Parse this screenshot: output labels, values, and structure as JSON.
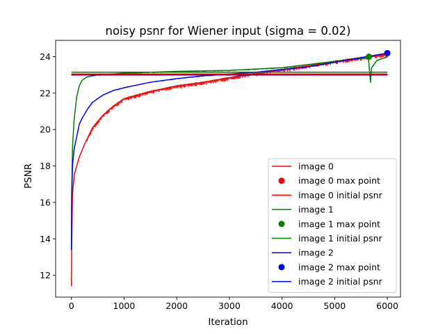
{
  "chart_data": {
    "type": "line",
    "title": "noisy psnr for Wiener input (sigma = 0.02)",
    "xlabel": "Iteration",
    "ylabel": "PSNR",
    "xlim": [
      -300,
      6250
    ],
    "ylim": [
      10.8,
      24.9
    ],
    "xticks": [
      0,
      1000,
      2000,
      3000,
      4000,
      5000,
      6000
    ],
    "yticks": [
      12,
      14,
      16,
      18,
      20,
      22,
      24
    ],
    "grid": false,
    "legend_position": "lower-right",
    "colors": {
      "image0": "#ff0000",
      "image1": "#008000",
      "image2": "#0000ff"
    },
    "series": [
      {
        "name": "image 0",
        "kind": "line",
        "color": "#ff0000",
        "points": [
          [
            0,
            11.4
          ],
          [
            5,
            13.5
          ],
          [
            20,
            16.5
          ],
          [
            60,
            17.6
          ],
          [
            100,
            18.0
          ],
          [
            150,
            18.5
          ],
          [
            250,
            19.2
          ],
          [
            400,
            20.1
          ],
          [
            600,
            20.8
          ],
          [
            800,
            21.3
          ],
          [
            1000,
            21.7
          ],
          [
            1500,
            22.1
          ],
          [
            2000,
            22.4
          ],
          [
            2500,
            22.6
          ],
          [
            3000,
            22.85
          ],
          [
            3500,
            23.1
          ],
          [
            4000,
            23.3
          ],
          [
            4500,
            23.5
          ],
          [
            5000,
            23.75
          ],
          [
            5500,
            23.95
          ],
          [
            6000,
            24.15
          ]
        ],
        "noise": 0.12
      },
      {
        "name": "image 0 max point",
        "kind": "marker",
        "color": "#ff0000",
        "x": 6000,
        "y": 24.2
      },
      {
        "name": "image 0 initial psnr",
        "kind": "hline",
        "color": "#ff0000",
        "y": 23.05
      },
      {
        "name": "image 1",
        "kind": "line",
        "color": "#008000",
        "points": [
          [
            0,
            13.6
          ],
          [
            5,
            16.5
          ],
          [
            20,
            19.0
          ],
          [
            50,
            20.5
          ],
          [
            100,
            21.8
          ],
          [
            150,
            22.4
          ],
          [
            200,
            22.7
          ],
          [
            300,
            22.9
          ],
          [
            500,
            23.0
          ],
          [
            1000,
            23.1
          ],
          [
            2000,
            23.2
          ],
          [
            3000,
            23.25
          ],
          [
            4000,
            23.4
          ],
          [
            5000,
            23.75
          ],
          [
            5640,
            23.95
          ],
          [
            5680,
            22.6
          ],
          [
            5700,
            23.4
          ],
          [
            5800,
            23.8
          ],
          [
            6000,
            24.0
          ]
        ],
        "noise": 0.04
      },
      {
        "name": "image 1 max point",
        "kind": "marker",
        "color": "#008000",
        "x": 5650,
        "y": 24.0
      },
      {
        "name": "image 1 initial psnr",
        "kind": "hline",
        "color": "#008000",
        "y": 23.15
      },
      {
        "name": "image 2",
        "kind": "line",
        "color": "#0000ff",
        "points": [
          [
            0,
            13.4
          ],
          [
            5,
            16.0
          ],
          [
            20,
            18.0
          ],
          [
            50,
            18.9
          ],
          [
            100,
            19.6
          ],
          [
            150,
            20.3
          ],
          [
            200,
            20.6
          ],
          [
            300,
            21.1
          ],
          [
            400,
            21.5
          ],
          [
            600,
            21.9
          ],
          [
            800,
            22.15
          ],
          [
            1000,
            22.3
          ],
          [
            1500,
            22.6
          ],
          [
            2000,
            22.8
          ],
          [
            2500,
            22.95
          ],
          [
            3000,
            23.05
          ],
          [
            3500,
            23.15
          ],
          [
            4000,
            23.3
          ],
          [
            4500,
            23.45
          ],
          [
            5000,
            23.7
          ],
          [
            5500,
            23.95
          ],
          [
            6000,
            24.2
          ]
        ],
        "noise": 0.03
      },
      {
        "name": "image 2 max point",
        "kind": "marker",
        "color": "#0000ff",
        "x": 6000,
        "y": 24.2
      },
      {
        "name": "image 2 initial psnr",
        "kind": "hline",
        "color": "#0000ff",
        "y": 23.0
      }
    ]
  }
}
